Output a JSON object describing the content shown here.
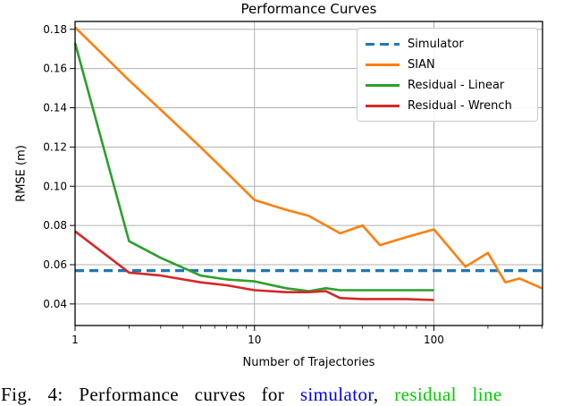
{
  "figure": {
    "title": "Performance Curves",
    "caption": {
      "prefix": "Fig. 4: Performance curves for ",
      "simulator_link": "simulator",
      "separator": ", ",
      "residual_link": "residual line",
      "simulator_color": "#0000ee",
      "residual_color": "#00cc00"
    }
  },
  "chart_data": {
    "type": "line",
    "title": "Performance Curves",
    "xlabel": "Number of Trajectories",
    "ylabel": "RMSE (m)",
    "x_scale": "log",
    "xlim": [
      1,
      403
    ],
    "ylim": [
      0.029,
      0.184
    ],
    "x_ticks": [
      1,
      10,
      100
    ],
    "y_ticks": [
      0.04,
      0.06,
      0.08,
      0.1,
      0.12,
      0.14,
      0.16,
      0.18
    ],
    "grid": true,
    "grid_color": "#b0b0b0",
    "axis_color": "#000000",
    "legend_position": "upper right",
    "series": [
      {
        "name": "Simulator",
        "color": "#1f77b4",
        "style": "dashed",
        "x": [
          1,
          403
        ],
        "y": [
          0.057,
          0.057
        ]
      },
      {
        "name": "SIAN",
        "color": "#ff7f0e",
        "style": "solid",
        "x": [
          1,
          2,
          3,
          5,
          7,
          10,
          15,
          20,
          30,
          40,
          50,
          70,
          100,
          150,
          200,
          250,
          300,
          400
        ],
        "y": [
          0.181,
          0.154,
          0.139,
          0.12,
          0.107,
          0.093,
          0.088,
          0.085,
          0.076,
          0.08,
          0.07,
          0.074,
          0.078,
          0.059,
          0.066,
          0.051,
          0.053,
          0.048
        ]
      },
      {
        "name": "Residual - Linear",
        "color": "#2ca02c",
        "style": "solid",
        "x": [
          1,
          2,
          3,
          5,
          7,
          10,
          15,
          20,
          25,
          30,
          40,
          50,
          70,
          100
        ],
        "y": [
          0.173,
          0.072,
          0.0635,
          0.0545,
          0.0525,
          0.0515,
          0.048,
          0.0465,
          0.048,
          0.047,
          0.047,
          0.047,
          0.047,
          0.047
        ]
      },
      {
        "name": "Residual - Wrench",
        "color": "#d62728",
        "style": "solid",
        "x": [
          1,
          2,
          3,
          5,
          7,
          10,
          15,
          20,
          25,
          30,
          40,
          50,
          70,
          100
        ],
        "y": [
          0.077,
          0.056,
          0.0545,
          0.051,
          0.0495,
          0.047,
          0.046,
          0.046,
          0.0465,
          0.043,
          0.0425,
          0.0425,
          0.0425,
          0.042
        ]
      }
    ]
  }
}
